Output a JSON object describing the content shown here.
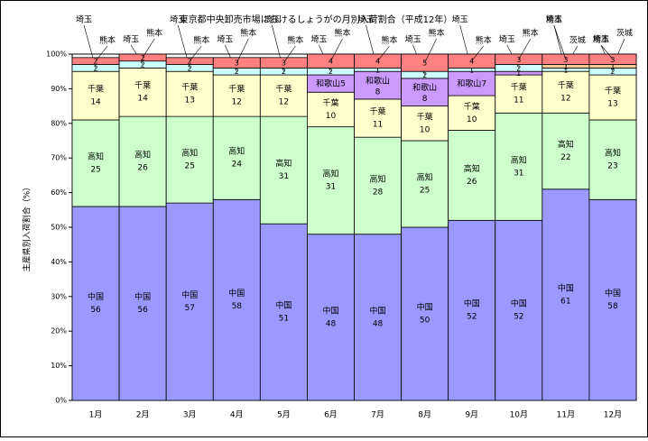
{
  "chart_data": {
    "type": "stacked_bar",
    "title": "東京都中央卸売市場におけるしょうがの月別入荷割合（平成12年）",
    "y_label": "主産県別入荷割合（%）",
    "categories": [
      "1月",
      "2月",
      "3月",
      "4月",
      "5月",
      "6月",
      "7月",
      "8月",
      "9月",
      "10月",
      "11月",
      "12月"
    ],
    "ylim": [
      0,
      100
    ],
    "yticks": [
      {
        "value": 0,
        "label": "0%"
      },
      {
        "value": 10,
        "label": "10%"
      },
      {
        "value": 20,
        "label": "20%"
      },
      {
        "value": 30,
        "label": "30%"
      },
      {
        "value": 40,
        "label": "40%"
      },
      {
        "value": 50,
        "label": "50%"
      },
      {
        "value": 60,
        "label": "60%"
      },
      {
        "value": 70,
        "label": "70%"
      },
      {
        "value": 80,
        "label": "80%"
      },
      {
        "value": 90,
        "label": "90%"
      },
      {
        "value": 100,
        "label": "100%"
      }
    ],
    "series": [
      {
        "name": "中国",
        "color": "#9999ff",
        "values": [
          56,
          56,
          57,
          58,
          51,
          48,
          48,
          50,
          52,
          52,
          61,
          58
        ]
      },
      {
        "name": "高知",
        "color": "#ccffcc",
        "values": [
          25,
          26,
          25,
          24,
          31,
          31,
          28,
          25,
          26,
          31,
          22,
          23
        ]
      },
      {
        "name": "千葉",
        "color": "#ffffcc",
        "values": [
          14,
          14,
          13,
          12,
          12,
          10,
          11,
          10,
          10,
          11,
          12,
          13
        ]
      },
      {
        "name": "和歌山",
        "color": "#cc99ff",
        "values": [
          null,
          null,
          null,
          null,
          null,
          5,
          8,
          8,
          7,
          1,
          null,
          null
        ]
      },
      {
        "name": "埼玉",
        "color": "#ccffff",
        "values": [
          2,
          2,
          2,
          2,
          2,
          2,
          1,
          2,
          1,
          2,
          1,
          2
        ]
      },
      {
        "name": "茨城",
        "color": "#ffcc99",
        "values": [
          null,
          null,
          null,
          null,
          null,
          null,
          null,
          null,
          null,
          null,
          1,
          1
        ]
      },
      {
        "name": "熊本",
        "color": "#ff8080",
        "values": [
          2,
          2,
          2,
          3,
          3,
          4,
          4,
          5,
          4,
          3,
          3,
          3
        ]
      }
    ]
  }
}
